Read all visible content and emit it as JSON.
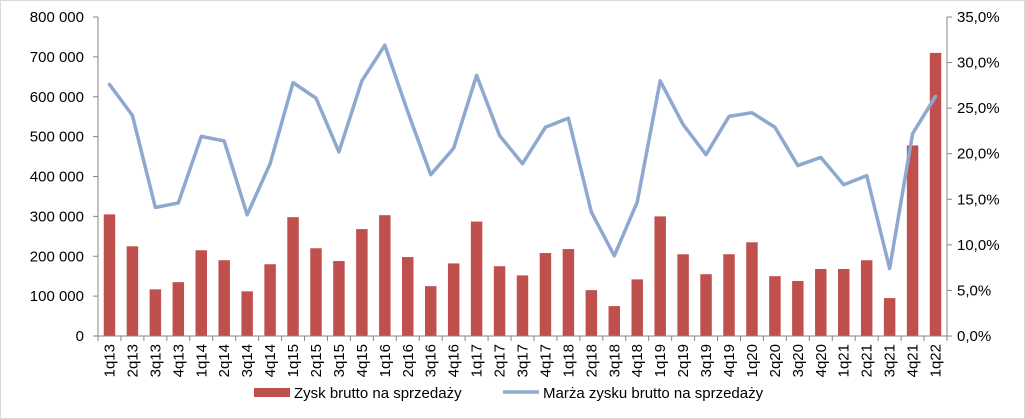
{
  "chart_data": {
    "type": "bar+line",
    "categories": [
      "1q13",
      "2q13",
      "3q13",
      "4q13",
      "1q14",
      "2q14",
      "3q14",
      "4q14",
      "1q15",
      "2q15",
      "3q15",
      "4q15",
      "1q16",
      "2q16",
      "3q16",
      "4q16",
      "1q17",
      "2q17",
      "3q17",
      "4q17",
      "1q18",
      "2q18",
      "3q18",
      "4q18",
      "1q19",
      "2q19",
      "3q19",
      "4q19",
      "1q20",
      "2q20",
      "3q20",
      "4q20",
      "1q21",
      "2q21",
      "3q21",
      "4q21",
      "1q22"
    ],
    "series": [
      {
        "name": "Zysk brutto na sprzedaży",
        "type": "bar",
        "axis": "left",
        "color": "#C0504D",
        "values": [
          305000,
          225000,
          117000,
          135000,
          215000,
          190000,
          112000,
          180000,
          298000,
          220000,
          188000,
          268000,
          303000,
          198000,
          125000,
          182000,
          287000,
          175000,
          152000,
          208000,
          218000,
          115000,
          75000,
          142000,
          300000,
          205000,
          155000,
          205000,
          235000,
          150000,
          138000,
          168000,
          168000,
          190000,
          95000,
          478000,
          710000
        ]
      },
      {
        "name": "Marża zysku brutto na sprzedaży",
        "type": "line",
        "axis": "right",
        "color": "#8EA8CF",
        "values": [
          27.6,
          24.2,
          14.1,
          14.6,
          21.9,
          21.4,
          13.3,
          18.9,
          27.8,
          26.1,
          20.2,
          28.0,
          31.9,
          24.6,
          17.7,
          20.6,
          28.6,
          22.0,
          18.9,
          22.9,
          23.9,
          13.6,
          8.8,
          14.7,
          28.0,
          23.2,
          19.9,
          24.1,
          24.5,
          22.9,
          18.7,
          19.6,
          16.6,
          17.6,
          7.4,
          22.2,
          26.3
        ]
      }
    ],
    "y_left": {
      "ylim": [
        0,
        800000
      ],
      "ticks": [
        0,
        100000,
        200000,
        300000,
        400000,
        500000,
        600000,
        700000,
        800000
      ],
      "tick_labels": [
        "0",
        "100 000",
        "200 000",
        "300 000",
        "400 000",
        "500 000",
        "600 000",
        "700 000",
        "800 000"
      ]
    },
    "y_right": {
      "ylim": [
        0,
        35
      ],
      "ticks": [
        0,
        5,
        10,
        15,
        20,
        25,
        30,
        35
      ],
      "tick_labels": [
        "0,0%",
        "5,0%",
        "10,0%",
        "15,0%",
        "20,0%",
        "25,0%",
        "30,0%",
        "35,0%"
      ]
    },
    "legend_position": "bottom",
    "grid": false,
    "axis_color": "#868686"
  }
}
